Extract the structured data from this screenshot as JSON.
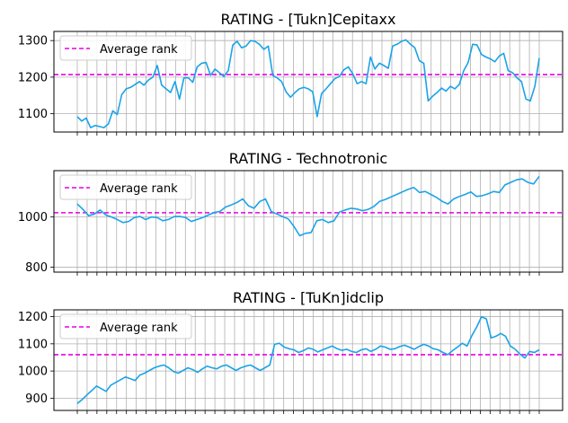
{
  "chart_data": [
    {
      "type": "line",
      "title": "RATING - [Tukn]Cepitaxx",
      "ylim": [
        1050,
        1325
      ],
      "yticks": [
        1100,
        1200,
        1300
      ],
      "legend": {
        "label": "Average rank",
        "placement": "top-left"
      },
      "reference_line": {
        "name": "Average rank",
        "value": 1207,
        "style": "dashed",
        "color": "#e600e6"
      },
      "series": [
        {
          "color": "#1aa3e8",
          "values": [
            1092,
            1080,
            1088,
            1062,
            1068,
            1065,
            1062,
            1072,
            1108,
            1098,
            1152,
            1168,
            1172,
            1180,
            1188,
            1178,
            1192,
            1200,
            1232,
            1178,
            1168,
            1158,
            1188,
            1140,
            1198,
            1198,
            1186,
            1228,
            1238,
            1240,
            1205,
            1222,
            1212,
            1202,
            1218,
            1288,
            1298,
            1280,
            1285,
            1300,
            1298,
            1290,
            1276,
            1285,
            1205,
            1198,
            1188,
            1160,
            1145,
            1158,
            1168,
            1172,
            1168,
            1160,
            1092,
            1155,
            1168,
            1182,
            1196,
            1202,
            1220,
            1228,
            1210,
            1182,
            1188,
            1182,
            1255,
            1222,
            1238,
            1232,
            1224,
            1285,
            1290,
            1298,
            1302,
            1290,
            1280,
            1245,
            1238,
            1135,
            1148,
            1158,
            1170,
            1162,
            1175,
            1168,
            1180,
            1218,
            1240,
            1290,
            1288,
            1262,
            1255,
            1250,
            1242,
            1258,
            1265,
            1218,
            1212,
            1198,
            1188,
            1140,
            1135,
            1175,
            1252
          ]
        }
      ]
    },
    {
      "type": "line",
      "title": "RATING - Technotronic",
      "ylim": [
        780,
        1185
      ],
      "yticks": [
        800,
        1000
      ],
      "legend": {
        "label": "Average rank",
        "placement": "top-left"
      },
      "reference_line": {
        "name": "Average rank",
        "value": 1017,
        "style": "dashed",
        "color": "#e600e6"
      },
      "series": [
        {
          "color": "#1aa3e8",
          "values": [
            1052,
            1030,
            1005,
            1012,
            1028,
            1008,
            1000,
            990,
            978,
            982,
            998,
            1002,
            990,
            1000,
            998,
            985,
            990,
            1002,
            1002,
            998,
            982,
            990,
            998,
            1008,
            1018,
            1022,
            1040,
            1048,
            1058,
            1072,
            1045,
            1035,
            1062,
            1072,
            1022,
            1012,
            1002,
            992,
            962,
            925,
            935,
            938,
            985,
            990,
            978,
            985,
            1020,
            1028,
            1035,
            1032,
            1025,
            1030,
            1042,
            1062,
            1070,
            1080,
            1090,
            1100,
            1110,
            1118,
            1098,
            1102,
            1090,
            1078,
            1062,
            1052,
            1072,
            1082,
            1090,
            1100,
            1082,
            1085,
            1092,
            1102,
            1098,
            1128,
            1138,
            1148,
            1152,
            1138,
            1132,
            1162
          ]
        }
      ]
    },
    {
      "type": "line",
      "title": "RATING - [TuKn]idclip",
      "ylim": [
        855,
        1225
      ],
      "yticks": [
        900,
        1000,
        1100,
        1200
      ],
      "legend": {
        "label": "Average rank",
        "placement": "top-left"
      },
      "reference_line": {
        "name": "Average rank",
        "value": 1060,
        "style": "dashed",
        "color": "#e600e6"
      },
      "series": [
        {
          "color": "#1aa3e8",
          "values": [
            880,
            895,
            912,
            928,
            945,
            935,
            925,
            948,
            958,
            968,
            978,
            972,
            965,
            985,
            992,
            1002,
            1012,
            1018,
            1022,
            1012,
            998,
            992,
            1002,
            1012,
            1005,
            995,
            1008,
            1018,
            1012,
            1008,
            1018,
            1022,
            1012,
            1002,
            1012,
            1018,
            1022,
            1012,
            1002,
            1012,
            1022,
            1098,
            1102,
            1088,
            1082,
            1078,
            1068,
            1075,
            1085,
            1080,
            1070,
            1078,
            1085,
            1092,
            1082,
            1076,
            1080,
            1072,
            1068,
            1078,
            1082,
            1072,
            1080,
            1092,
            1088,
            1080,
            1082,
            1090,
            1095,
            1088,
            1080,
            1090,
            1098,
            1092,
            1082,
            1078,
            1068,
            1060,
            1075,
            1088,
            1102,
            1092,
            1130,
            1162,
            1200,
            1192,
            1122,
            1128,
            1138,
            1128,
            1092,
            1080,
            1062,
            1048,
            1072,
            1068,
            1078
          ]
        }
      ]
    }
  ]
}
